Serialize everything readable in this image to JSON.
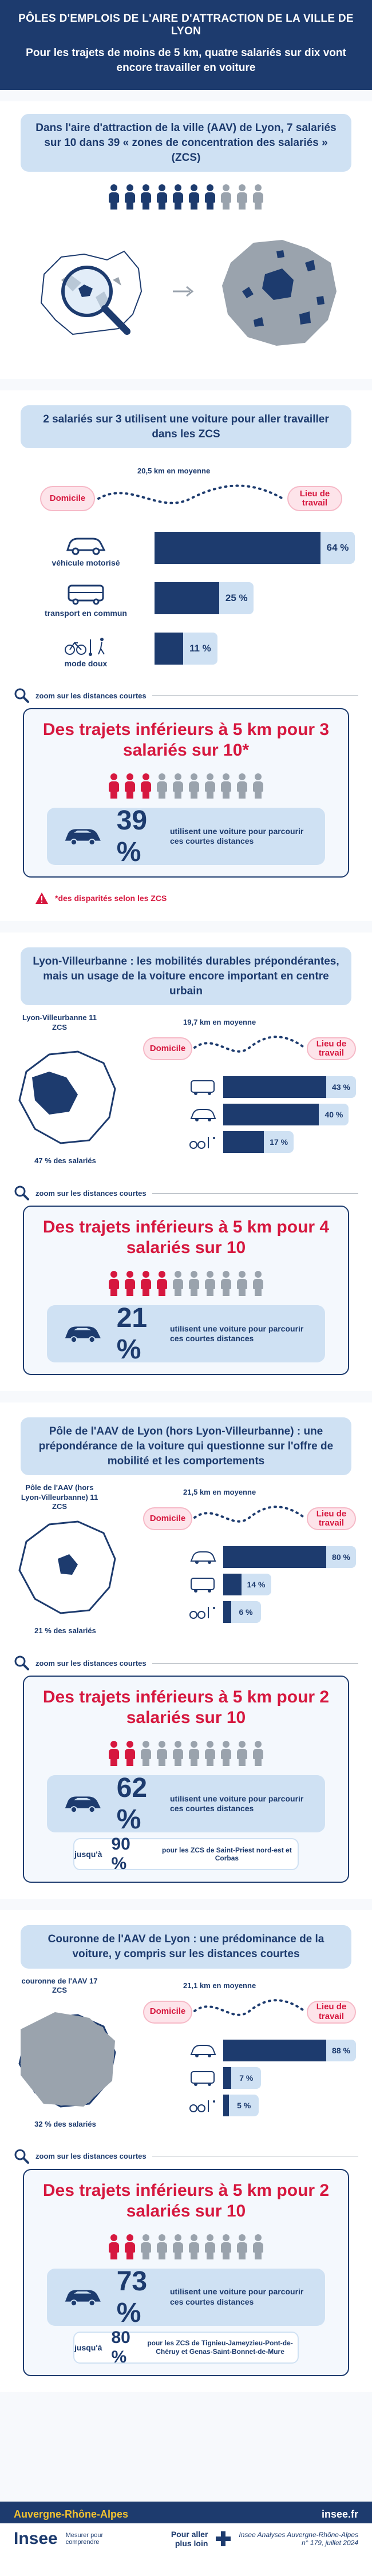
{
  "header": {
    "title": "PÔLES D'EMPLOIS DE L'AIRE D'ATTRACTION DE LA VILLE DE LYON",
    "subtitle": "Pour les trajets de moins de 5 km, quatre salariés sur dix vont encore travailler en voiture"
  },
  "intro": {
    "card": "Dans l'aire d'attraction de la ville (AAV) de Lyon, 7 salariés sur 10 dans 39 « zones de concentration des salariés » (ZCS)",
    "people_filled": 7,
    "people_total": 10
  },
  "overall": {
    "card": "2 salariés sur 3 utilisent une voiture pour aller travailler dans les ZCS",
    "distance": "20,5 km en moyenne",
    "home": "Domicile",
    "work": "Lieu de travail",
    "modes": [
      {
        "label": "véhicule motorisé",
        "pct_label": "64 %",
        "value": 64
      },
      {
        "label": "transport en commun",
        "pct_label": "25 %",
        "value": 25
      },
      {
        "label": "mode doux",
        "pct_label": "11 %",
        "value": 11
      }
    ],
    "zoom_label": "zoom sur les distances courtes",
    "zoom_title": "Des trajets inférieurs à 5 km pour 3 salariés sur 10*",
    "people_filled": 3,
    "people_total": 10,
    "car_pct": "39 %",
    "car_text": "utilisent une voiture pour parcourir ces courtes distances",
    "footnote": "*des disparités selon les ZCS"
  },
  "lyon_villeurbanne": {
    "card": "Lyon-Villeurbanne : les mobilités durables prépondérantes, mais un usage de la voiture encore important en centre urbain",
    "area_label": "Lyon-Villeurbanne 11 ZCS",
    "share_label": "47 % des salariés",
    "distance": "19,7 km en moyenne",
    "home": "Domicile",
    "work": "Lieu de travail",
    "modes": [
      {
        "pct_label": "43 %",
        "value": 43
      },
      {
        "pct_label": "40 %",
        "value": 40
      },
      {
        "pct_label": "17 %",
        "value": 17
      }
    ],
    "zoom_label": "zoom sur les distances courtes",
    "zoom_title": "Des trajets inférieurs à 5 km pour 4 salariés sur 10",
    "people_filled": 4,
    "people_total": 10,
    "car_pct": "21 %",
    "car_text": "utilisent une voiture pour parcourir ces courtes distances"
  },
  "pole": {
    "card": "Pôle de l'AAV de Lyon (hors Lyon-Villeurbanne) : une prépondérance de la voiture qui questionne sur l'offre de mobilité et les comportements",
    "area_label": "Pôle de l'AAV (hors Lyon-Villeurbanne) 11 ZCS",
    "share_label": "21 % des salariés",
    "distance": "21,5 km en moyenne",
    "home": "Domicile",
    "work": "Lieu de travail",
    "modes": [
      {
        "pct_label": "80 %",
        "value": 80
      },
      {
        "pct_label": "14 %",
        "value": 14
      },
      {
        "pct_label": "6 %",
        "value": 6
      }
    ],
    "zoom_label": "zoom sur les distances courtes",
    "zoom_title": "Des trajets inférieurs à 5 km pour 2 salariés sur 10",
    "people_filled": 2,
    "people_total": 10,
    "car_pct": "62 %",
    "car_text": "utilisent une voiture pour parcourir ces courtes distances",
    "upto_label": "jusqu'à",
    "upto_pct": "90 %",
    "upto_text": "pour les ZCS de Saint-Priest nord-est et Corbas"
  },
  "couronne": {
    "card": "Couronne de l'AAV de Lyon : une prédominance de la voiture, y compris sur les distances courtes",
    "area_label": "couronne de l'AAV 17 ZCS",
    "share_label": "32 % des salariés",
    "distance": "21,1 km en moyenne",
    "home": "Domicile",
    "work": "Lieu de travail",
    "modes": [
      {
        "pct_label": "88 %",
        "value": 88
      },
      {
        "pct_label": "7 %",
        "value": 7
      },
      {
        "pct_label": "5 %",
        "value": 5
      }
    ],
    "zoom_label": "zoom sur les distances courtes",
    "zoom_title": "Des trajets inférieurs à 5 km pour 2 salariés sur 10",
    "people_filled": 2,
    "people_total": 10,
    "car_pct": "73 %",
    "car_text": "utilisent une voiture pour parcourir ces courtes distances",
    "upto_label": "jusqu'à",
    "upto_pct": "80 %",
    "upto_text": "pour les ZCS de Tignieu-Jameyzieu-Pont-de-Chéruy et Genas-Saint-Bonnet-de-Mure"
  },
  "footer": {
    "region": "Auvergne-Rhône-Alpes",
    "site": "insee.fr",
    "logo": "Insee",
    "tagline": "Mesurer pour comprendre",
    "more": "Pour aller plus loin",
    "publication": "Insee Analyses Auvergne-Rhône-Alpes",
    "issue": "n° 179, juillet 2024"
  },
  "colors": {
    "navy": "#1d3b6e",
    "light_blue": "#cfe1f3",
    "red": "#d6183f",
    "grey": "#9aa3ad"
  }
}
